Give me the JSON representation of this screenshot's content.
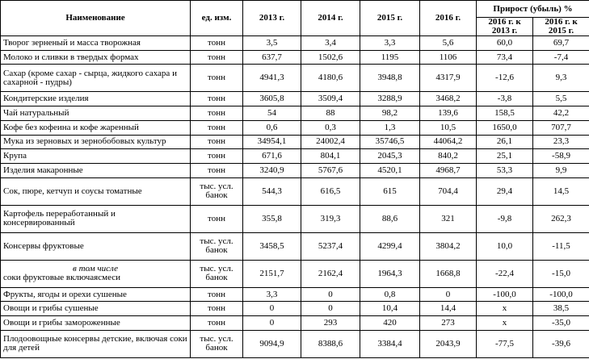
{
  "table": {
    "header": {
      "name": "Наименование",
      "unit": "ед. изм.",
      "years": [
        "2013 г.",
        "2014 г.",
        "2015 г.",
        "2016 г."
      ],
      "growth": "Прирост (убыль) %",
      "growth_cols": [
        "2016 г. к 2013 г.",
        "2016 г. к 2015 г."
      ]
    },
    "rows": [
      {
        "name": "Творог зерненый и масса  творожная",
        "unit": "тонн",
        "values": [
          "3,5",
          "3,4",
          "3,3",
          "5,6",
          "60,0",
          "69,7"
        ]
      },
      {
        "name": "Молоко и сливки в твердых формах",
        "unit": "тонн",
        "values": [
          "637,7",
          "1502,6",
          "1195",
          "1106",
          "73,4",
          "-7,4"
        ]
      },
      {
        "name": "Сахар (кроме сахар - сырца, жидкого сахара и сахарной - пудры)",
        "unit": "тонн",
        "values": [
          "4941,3",
          "4180,6",
          "3948,8",
          "4317,9",
          "-12,6",
          "9,3"
        ]
      },
      {
        "name": "Кондитерские изделия",
        "unit": "тонн",
        "values": [
          "3605,8",
          "3509,4",
          "3288,9",
          "3468,2",
          "-3,8",
          "5,5"
        ]
      },
      {
        "name": "Чай натуральный",
        "unit": "тонн",
        "values": [
          "54",
          "88",
          "98,2",
          "139,6",
          "158,5",
          "42,2"
        ]
      },
      {
        "name": "Кофе без кофеина и кофе жаренный",
        "unit": "тонн",
        "values": [
          "0,6",
          "0,3",
          "1,3",
          "10,5",
          "1650,0",
          "707,7"
        ]
      },
      {
        "name": "Мука из зерновых и зернобобовых культур",
        "unit": "тонн",
        "values": [
          "34954,1",
          "24002,4",
          "35746,5",
          "44064,2",
          "26,1",
          "23,3"
        ]
      },
      {
        "name": "Крупа",
        "unit": "тонн",
        "values": [
          "671,6",
          "804,1",
          "2045,3",
          "840,2",
          "25,1",
          "-58,9"
        ]
      },
      {
        "name": "Изделия макаронные",
        "unit": "тонн",
        "values": [
          "3240,9",
          "5767,6",
          "4520,1",
          "4968,7",
          "53,3",
          "9,9"
        ]
      },
      {
        "name": "Сок, пюре, кетчуп и соусы томатные",
        "unit": "тыс. усл. банок",
        "values": [
          "544,3",
          "616,5",
          "615",
          "704,4",
          "29,4",
          "14,5"
        ]
      },
      {
        "name": "Картофель переработанный и консервированный",
        "unit": "тонн",
        "values": [
          "355,8",
          "319,3",
          "88,6",
          "321",
          "-9,8",
          "262,3"
        ]
      },
      {
        "name": "Консервы фруктовые",
        "unit": "тыс. усл. банок",
        "values": [
          "3458,5",
          "5237,4",
          "4299,4",
          "3804,2",
          "10,0",
          "-11,5"
        ]
      },
      {
        "note": "в том числе",
        "name": "соки фруктовые     включаясмеси",
        "unit": "тыс. усл. банок",
        "values": [
          "2151,7",
          "2162,4",
          "1964,3",
          "1668,8",
          "-22,4",
          "-15,0"
        ]
      },
      {
        "name": "Фрукты, ягоды и орехи сушеные",
        "unit": "тонн",
        "values": [
          "3,3",
          "0",
          "0,8",
          "0",
          "-100,0",
          "-100,0"
        ]
      },
      {
        "name": "Овощи и грибы сушеные",
        "unit": "тонн",
        "values": [
          "0",
          "0",
          "10,4",
          "14,4",
          "x",
          "38,5"
        ]
      },
      {
        "name": "Овощи и грибы замороженные",
        "unit": "тонн",
        "values": [
          "0",
          "293",
          "420",
          "273",
          "x",
          "-35,0"
        ]
      },
      {
        "name": "Плодоовощные консервы детские, включая соки для детей",
        "unit": "тыс. усл. банок",
        "values": [
          "9094,9",
          "8388,6",
          "3384,4",
          "2043,9",
          "-77,5",
          "-39,6"
        ]
      }
    ]
  }
}
